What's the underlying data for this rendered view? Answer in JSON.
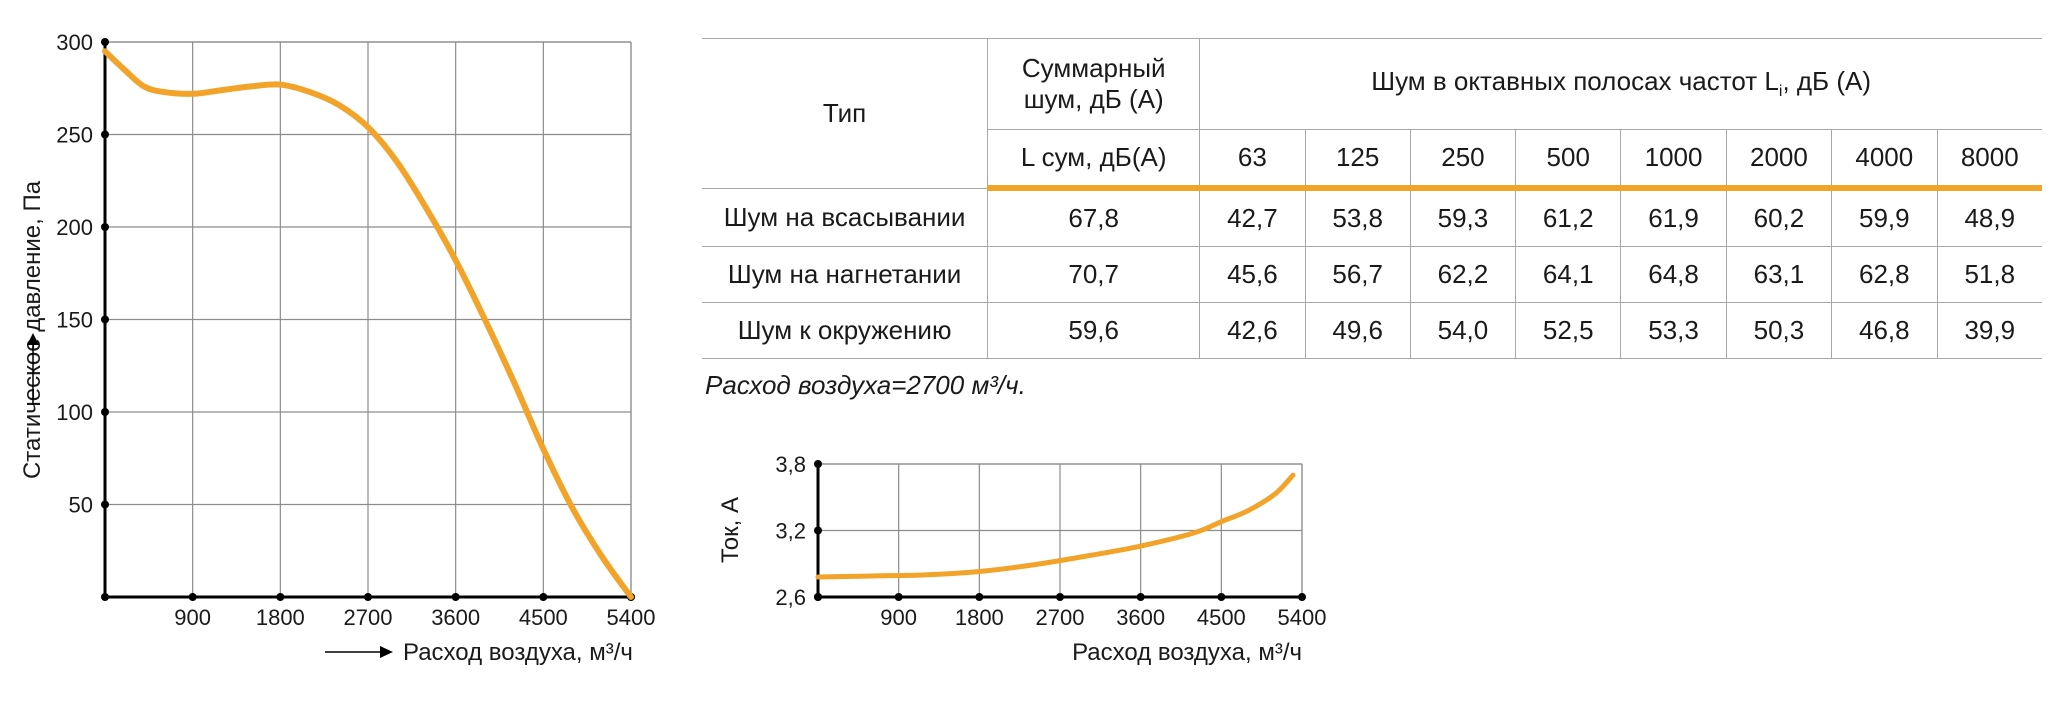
{
  "chart_data": [
    {
      "type": "line",
      "title": "",
      "xlabel": "Расход воздуха, м³/ч",
      "ylabel": "Статическое давление, Па",
      "xlim": [
        0,
        5400
      ],
      "ylim": [
        0,
        300
      ],
      "xticks": [
        "900",
        "1800",
        "2700",
        "3600",
        "4500",
        "5400"
      ],
      "yticks": [
        "50",
        "100",
        "150",
        "200",
        "250",
        "300"
      ],
      "grid": true,
      "color": "#F2A32A",
      "series": [
        {
          "x": [
            0,
            200,
            400,
            600,
            900,
            1200,
            1500,
            1800,
            2100,
            2400,
            2700,
            3000,
            3300,
            3600,
            3900,
            4200,
            4500,
            4800,
            5100,
            5400
          ],
          "y": [
            295,
            285,
            276,
            273,
            272,
            274,
            276,
            277,
            273,
            266,
            254,
            235,
            210,
            182,
            150,
            116,
            80,
            48,
            22,
            0
          ]
        }
      ]
    },
    {
      "type": "line",
      "title": "",
      "xlabel": "Расход воздуха, м³/ч",
      "ylabel": "Ток, А",
      "xlim": [
        0,
        5400
      ],
      "ylim": [
        2.6,
        3.8
      ],
      "xticks": [
        "900",
        "1800",
        "2700",
        "3600",
        "4500",
        "5400"
      ],
      "yticks": [
        "2,6",
        "3,2",
        "3,8"
      ],
      "grid": true,
      "color": "#F2A32A",
      "series": [
        {
          "x": [
            0,
            600,
            1200,
            1800,
            2400,
            3000,
            3600,
            4200,
            4500,
            4800,
            5100,
            5300
          ],
          "y": [
            2.78,
            2.79,
            2.8,
            2.83,
            2.89,
            2.97,
            3.06,
            3.18,
            3.28,
            3.38,
            3.53,
            3.7
          ]
        }
      ]
    }
  ],
  "table": {
    "head": {
      "type": "Тип",
      "total_title": "Суммарный\nшум, дБ (А)",
      "octave_title_prefix": "Шум в октавных полосах частот L",
      "octave_title_sub": "i",
      "octave_title_suffix": ", дБ (А)",
      "total_unit": "L сум, дБ(А)",
      "freqs": [
        "63",
        "125",
        "250",
        "500",
        "1000",
        "2000",
        "4000",
        "8000"
      ]
    },
    "rows": [
      {
        "label": "Шум на всасывании",
        "total": "67,8",
        "values": [
          "42,7",
          "53,8",
          "59,3",
          "61,2",
          "61,9",
          "60,2",
          "59,9",
          "48,9"
        ]
      },
      {
        "label": "Шум на нагнетании",
        "total": "70,7",
        "values": [
          "45,6",
          "56,7",
          "62,2",
          "64,1",
          "64,8",
          "63,1",
          "62,8",
          "51,8"
        ]
      },
      {
        "label": "Шум к окружению",
        "total": "59,6",
        "values": [
          "42,6",
          "49,6",
          "54,0",
          "52,5",
          "53,3",
          "50,3",
          "46,8",
          "39,9"
        ]
      }
    ]
  },
  "note": "Расход воздуха=2700 м³/ч."
}
